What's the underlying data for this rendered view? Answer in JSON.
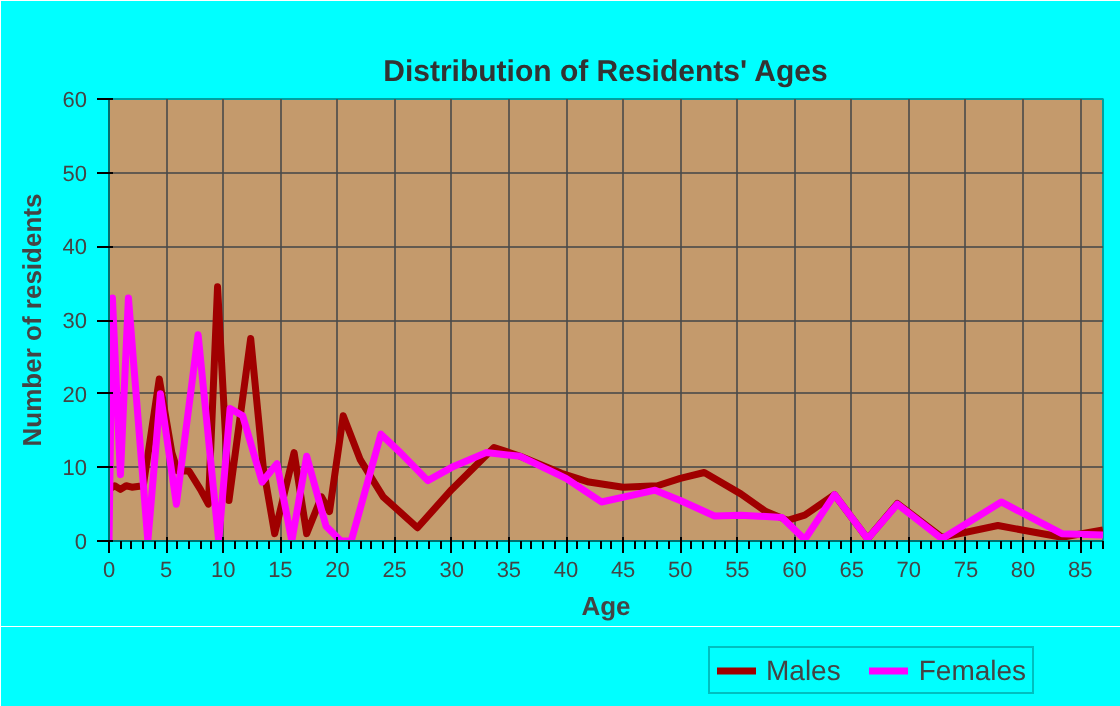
{
  "chart_data": {
    "type": "line",
    "title": "Distribution of Residents' Ages",
    "xlabel": "Age",
    "ylabel": "Number of residents",
    "xlim": [
      0,
      87
    ],
    "ylim": [
      0,
      60
    ],
    "xticks": [
      0,
      5,
      10,
      15,
      20,
      25,
      30,
      35,
      40,
      45,
      50,
      55,
      60,
      65,
      70,
      75,
      80,
      85
    ],
    "yticks": [
      0,
      10,
      20,
      30,
      40,
      50,
      60
    ],
    "grid": true,
    "legend": "bottom",
    "line_style": "solid",
    "series": [
      {
        "name": "Males",
        "color": "#a00000",
        "x": [
          0,
          0.5,
          1,
          1.5,
          2,
          3,
          4.4,
          5.5,
          6,
          7,
          8,
          8.7,
          9.5,
          10.5,
          12.4,
          13.5,
          14.5,
          16.2,
          17.3,
          18.6,
          19.3,
          20.5,
          22,
          24,
          27,
          30,
          33.7,
          36,
          39.6,
          42,
          45,
          48,
          50,
          52.1,
          55.3,
          57.5,
          59.4,
          60.9,
          63.5,
          66.4,
          69,
          72.9,
          77.8,
          83.4,
          87
        ],
        "values": [
          7,
          7.5,
          7,
          7.5,
          7.3,
          7.5,
          22,
          12,
          9.5,
          9.5,
          7,
          5,
          34.5,
          5.5,
          27.5,
          10,
          1,
          12,
          1,
          6,
          4,
          17,
          11,
          6,
          1.8,
          7,
          12.7,
          11.5,
          9.2,
          8,
          7.3,
          7.5,
          8.5,
          9.3,
          6.4,
          4,
          2.8,
          3.5,
          6.3,
          0.3,
          5.1,
          0.5,
          2.1,
          0.5,
          1.5
        ]
      },
      {
        "name": "Females",
        "color": "#ff00ff",
        "x": [
          0,
          0.3,
          1,
          1.7,
          3.4,
          4.5,
          5.9,
          7.8,
          9.6,
          10.6,
          11.7,
          13.4,
          14.7,
          16,
          17.3,
          19,
          20.3,
          21.2,
          23.8,
          25.5,
          27.9,
          30,
          33,
          36,
          40,
          43.1,
          47.8,
          50,
          53,
          55.3,
          58.9,
          60.9,
          63.5,
          66.4,
          69,
          72.9,
          78.1,
          83.4,
          87
        ],
        "values": [
          0,
          33,
          9,
          33,
          0,
          20,
          5,
          28,
          0,
          18,
          17,
          8,
          10.5,
          0,
          11.5,
          2,
          0,
          0,
          14.5,
          12,
          8.2,
          10,
          12,
          11.5,
          8.5,
          5.3,
          6.9,
          5.5,
          3.4,
          3.5,
          3.2,
          0.2,
          6.3,
          0.3,
          5,
          0.3,
          5.3,
          1,
          0.8
        ]
      }
    ]
  }
}
